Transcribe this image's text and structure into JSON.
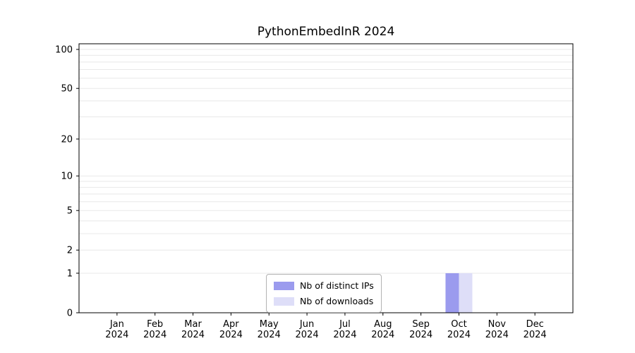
{
  "chart_data": {
    "type": "bar",
    "title": "PythonEmbedInR 2024",
    "categories": [
      "Jan",
      "Feb",
      "Mar",
      "Apr",
      "May",
      "Jun",
      "Jul",
      "Aug",
      "Sep",
      "Oct",
      "Nov",
      "Dec"
    ],
    "year": "2024",
    "xlabel": "",
    "ylabel": "",
    "yticks": [
      0,
      1,
      2,
      5,
      10,
      20,
      50,
      100
    ],
    "ylim": [
      0,
      100
    ],
    "yscale": "log1p",
    "grid": true,
    "legend_position": "bottom-center",
    "series": [
      {
        "name": "Nb of distinct IPs",
        "color": "#9b9bee",
        "values": [
          0,
          0,
          0,
          0,
          0,
          0,
          0,
          0,
          0,
          1,
          0,
          0
        ]
      },
      {
        "name": "Nb of downloads",
        "color": "#dedef8",
        "values": [
          0,
          0,
          0,
          0,
          0,
          0,
          0,
          0,
          0,
          1,
          0,
          0
        ]
      }
    ],
    "colors": {
      "grid": "#e8e8e8",
      "axis": "#000000",
      "legend_border": "#b3b3b3"
    }
  }
}
